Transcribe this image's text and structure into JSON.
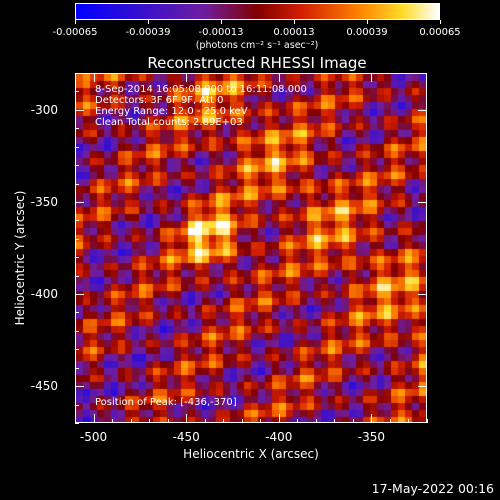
{
  "colorbar": {
    "labels": [
      "-0.00065",
      "-0.00039",
      "-0.00013",
      "0.00013",
      "0.00039",
      "0.00065"
    ],
    "units": "(photons cm⁻² s⁻¹ asec⁻²)"
  },
  "title": "Reconstructed RHESSI Image",
  "annotations": {
    "time": "8-Sep-2014 16:05:08.000 to 16:11:08.000",
    "detectors": "Detectors: 3F 6F 9F, Att 0",
    "energy": "Energy Range: 12.0 - 25.0 keV",
    "clean": "Clean     Total counts: 2.89E+03",
    "peak": "Position of Peak: [-436,-370]"
  },
  "axes": {
    "xlabel": "Heliocentric X (arcsec)",
    "ylabel": "Heliocentric Y (arcsec)",
    "xticks": [
      "-500",
      "-450",
      "-400",
      "-350"
    ],
    "yticks": [
      "-300",
      "-350",
      "-400",
      "-450"
    ],
    "xrange": [
      -510,
      -320
    ],
    "yrange": [
      -470,
      -280
    ],
    "xtick_values": [
      -500,
      -450,
      -400,
      -350
    ],
    "ytick_values": [
      -300,
      -350,
      -400,
      -450
    ]
  },
  "peak_position": [
    -436,
    -370
  ],
  "timestamp": "17-May-2022 00:16"
}
